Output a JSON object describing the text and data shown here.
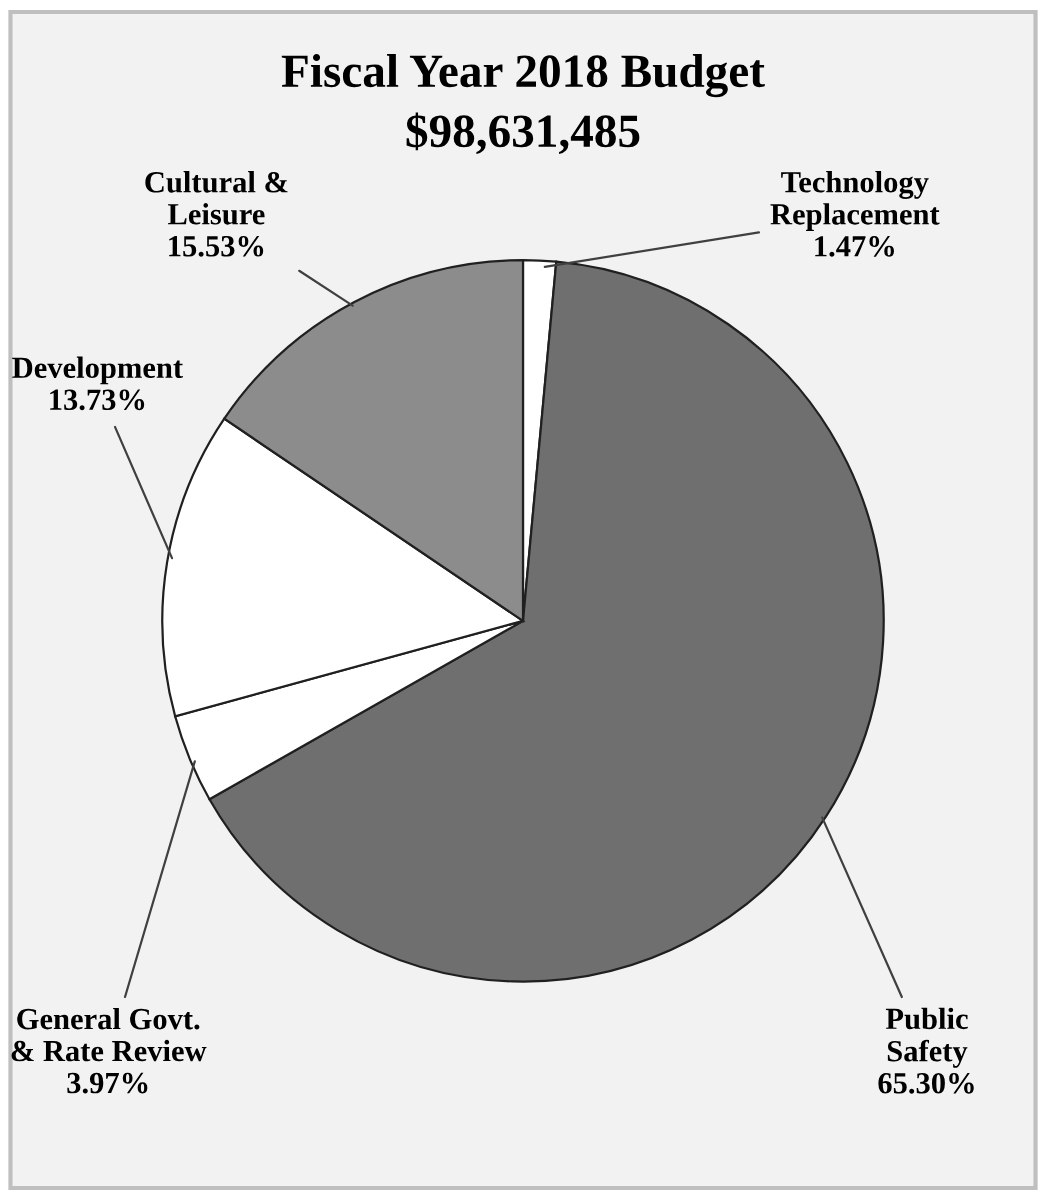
{
  "chart_data": {
    "type": "pie",
    "title": "Fiscal Year 2018 Budget",
    "subtitle": "$98,631,485",
    "categories": [
      "Technology\nReplacement",
      "Public\nSafety",
      "General Govt.\n& Rate Review",
      "Development",
      "Cultural &\nLeisure"
    ],
    "values": [
      1.47,
      65.3,
      3.97,
      13.73,
      15.53
    ],
    "value_labels": [
      "1.47%",
      "65.30%",
      "3.97%",
      "13.73%",
      "15.53%"
    ],
    "colors": [
      "#ffffff",
      "#6f6f6f",
      "#ffffff",
      "#ffffff",
      "#8c8c8c"
    ]
  }
}
